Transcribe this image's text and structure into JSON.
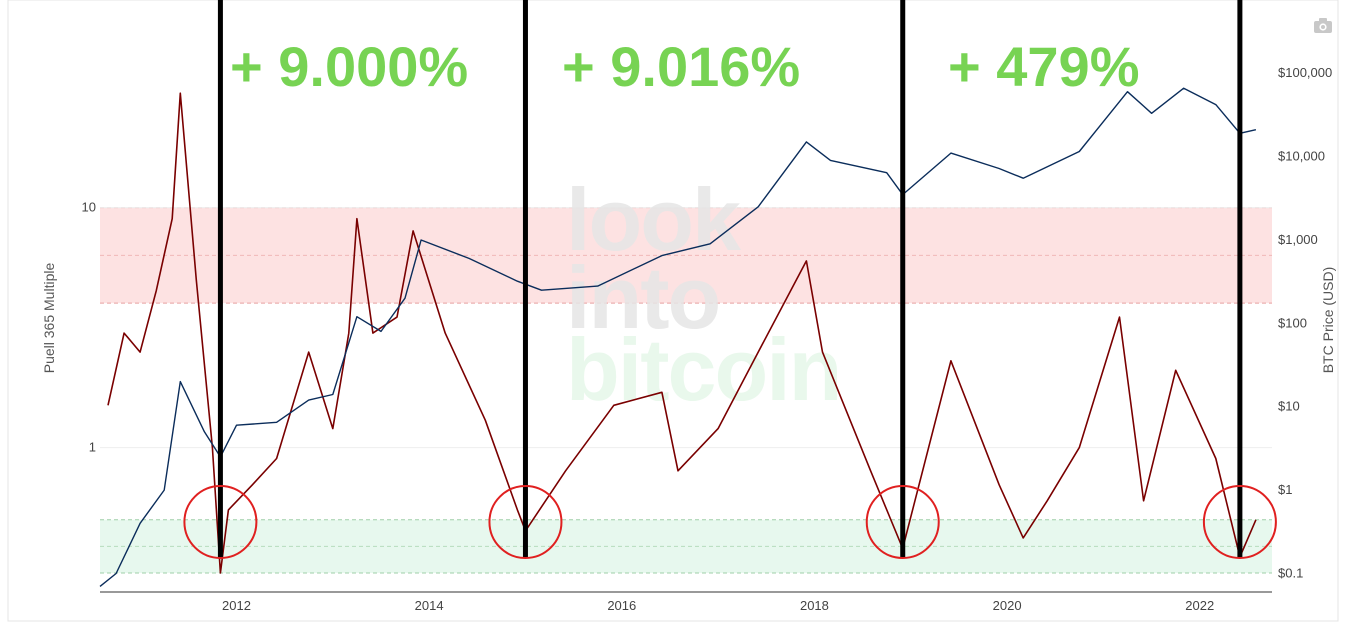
{
  "chart_data": {
    "type": "line",
    "title": "",
    "ylabel_left": "Puell 365 Multiple",
    "ylabel_right": "BTC Price (USD)",
    "x_range": [
      "2010-08",
      "2022-10"
    ],
    "x_ticks": [
      "2012",
      "2014",
      "2016",
      "2018",
      "2020",
      "2022"
    ],
    "y_left_scale": "log",
    "y_left_range": [
      0.25,
      50
    ],
    "y_left_ticks": [
      "1",
      "10"
    ],
    "y_right_scale": "log",
    "y_right_range": [
      0.06,
      250000
    ],
    "y_right_ticks": [
      "$0.1",
      "$1",
      "$10",
      "$100",
      "$1,000",
      "$10,000",
      "$100,000"
    ],
    "bands": [
      {
        "name": "top zone",
        "from": 4,
        "to": 10,
        "color": "#fde2e2"
      },
      {
        "name": "bottom zone",
        "from": 0.3,
        "to": 0.5,
        "color": "#e7f8ee"
      }
    ],
    "series": [
      {
        "color": "#7a0000",
        "axis": "left",
        "points": [
          [
            "2010-09",
            1.5
          ],
          [
            "2010-11",
            3.0
          ],
          [
            "2011-01",
            2.5
          ],
          [
            "2011-03",
            4.5
          ],
          [
            "2011-05",
            9.0
          ],
          [
            "2011-06",
            30.0
          ],
          [
            "2011-08",
            5.0
          ],
          [
            "2011-10",
            1.0
          ],
          [
            "2011-11",
            0.3
          ],
          [
            "2011-12",
            0.55
          ],
          [
            "2012-03",
            0.7
          ],
          [
            "2012-06",
            0.9
          ],
          [
            "2012-10",
            2.5
          ],
          [
            "2013-01",
            1.2
          ],
          [
            "2013-03",
            3.0
          ],
          [
            "2013-04",
            9.0
          ],
          [
            "2013-06",
            3.0
          ],
          [
            "2013-09",
            3.5
          ],
          [
            "2013-11",
            8.0
          ],
          [
            "2014-03",
            3.0
          ],
          [
            "2014-08",
            1.3
          ],
          [
            "2014-12",
            0.55
          ],
          [
            "2015-01",
            0.45
          ],
          [
            "2015-06",
            0.8
          ],
          [
            "2015-12",
            1.5
          ],
          [
            "2016-06",
            1.7
          ],
          [
            "2016-08",
            0.8
          ],
          [
            "2017-01",
            1.2
          ],
          [
            "2017-06",
            2.5
          ],
          [
            "2017-12",
            6.0
          ],
          [
            "2018-02",
            2.5
          ],
          [
            "2018-08",
            0.8
          ],
          [
            "2018-12",
            0.38
          ],
          [
            "2019-06",
            2.3
          ],
          [
            "2019-12",
            0.7
          ],
          [
            "2020-03",
            0.42
          ],
          [
            "2020-06",
            0.6
          ],
          [
            "2020-10",
            1.0
          ],
          [
            "2021-03",
            3.5
          ],
          [
            "2021-06",
            0.6
          ],
          [
            "2021-10",
            2.1
          ],
          [
            "2022-03",
            0.9
          ],
          [
            "2022-06",
            0.35
          ],
          [
            "2022-08",
            0.5
          ]
        ]
      },
      {
        "color": "#0b2d5b",
        "axis": "right",
        "points": [
          [
            "2010-08",
            0.07
          ],
          [
            "2010-10",
            0.1
          ],
          [
            "2011-01",
            0.4
          ],
          [
            "2011-04",
            1.0
          ],
          [
            "2011-06",
            20
          ],
          [
            "2011-09",
            5
          ],
          [
            "2011-11",
            2.5
          ],
          [
            "2012-01",
            6
          ],
          [
            "2012-06",
            6.5
          ],
          [
            "2012-10",
            12
          ],
          [
            "2013-01",
            14
          ],
          [
            "2013-04",
            120
          ],
          [
            "2013-07",
            80
          ],
          [
            "2013-10",
            200
          ],
          [
            "2013-12",
            1000
          ],
          [
            "2014-06",
            600
          ],
          [
            "2014-12",
            320
          ],
          [
            "2015-03",
            250
          ],
          [
            "2015-10",
            280
          ],
          [
            "2016-06",
            650
          ],
          [
            "2016-12",
            900
          ],
          [
            "2017-06",
            2500
          ],
          [
            "2017-12",
            15000
          ],
          [
            "2018-03",
            9000
          ],
          [
            "2018-10",
            6400
          ],
          [
            "2018-12",
            3500
          ],
          [
            "2019-06",
            11000
          ],
          [
            "2019-12",
            7200
          ],
          [
            "2020-03",
            5500
          ],
          [
            "2020-10",
            11500
          ],
          [
            "2021-04",
            60000
          ],
          [
            "2021-07",
            33000
          ],
          [
            "2021-11",
            66000
          ],
          [
            "2022-03",
            42000
          ],
          [
            "2022-06",
            19000
          ],
          [
            "2022-08",
            21000
          ]
        ]
      }
    ],
    "cycle_lines": [
      "2011-11",
      "2015-01",
      "2018-12",
      "2022-06"
    ],
    "circled_bottoms": [
      "2011-11",
      "2015-01",
      "2018-12",
      "2022-06"
    ],
    "annotations": [
      {
        "text": "+ 9.000%",
        "color": "#77d353"
      },
      {
        "text": "+ 9.016%",
        "color": "#77d353"
      },
      {
        "text": "+ 479%",
        "color": "#77d353"
      }
    ]
  },
  "watermark": {
    "line1": "look",
    "line2": "into",
    "line3": "bitcoin"
  },
  "toolbar": {
    "camera_icon": "camera-icon"
  }
}
